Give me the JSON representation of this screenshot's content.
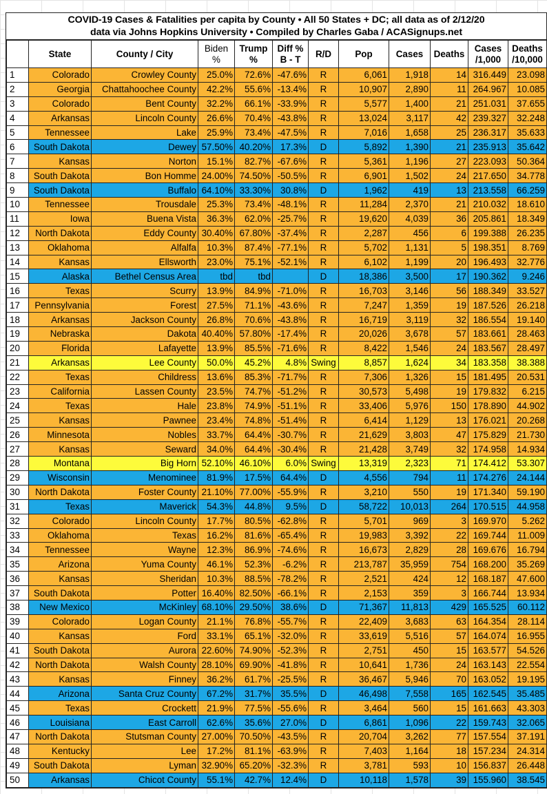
{
  "title": {
    "line1": "COVID-19 Cases & Fatalities per capita by County • All 50 States + DC; all data as of 2/12/20",
    "line2": "data via Johns Hopkins University • Compiled by Charles Gaba / ACASignups.net"
  },
  "colors": {
    "R": "#fbb535",
    "D": "#1da7e5",
    "Swing": "#fdfb3b"
  },
  "headers": [
    {
      "l1": "",
      "l2": ""
    },
    {
      "l1": "State",
      "l2": ""
    },
    {
      "l1": "County / City",
      "l2": ""
    },
    {
      "l1": "Biden",
      "l2": "%"
    },
    {
      "l1": "Trump",
      "l2": "%"
    },
    {
      "l1": "Diff %",
      "l2": "B - T"
    },
    {
      "l1": "R/D",
      "l2": ""
    },
    {
      "l1": "Pop",
      "l2": ""
    },
    {
      "l1": "Cases",
      "l2": ""
    },
    {
      "l1": "Deaths",
      "l2": ""
    },
    {
      "l1": "Cases",
      "l2": "/1,000"
    },
    {
      "l1": "Deaths",
      "l2": "/10,000"
    }
  ],
  "rows": [
    [
      "1",
      "Colorado",
      "Crowley County",
      "25.0%",
      "72.6%",
      "-47.6%",
      "R",
      "6,061",
      "1,918",
      "14",
      "316.449",
      "23.098"
    ],
    [
      "2",
      "Georgia",
      "Chattahoochee County",
      "42.2%",
      "55.6%",
      "-13.4%",
      "R",
      "10,907",
      "2,890",
      "11",
      "264.967",
      "10.085"
    ],
    [
      "3",
      "Colorado",
      "Bent County",
      "32.2%",
      "66.1%",
      "-33.9%",
      "R",
      "5,577",
      "1,400",
      "21",
      "251.031",
      "37.655"
    ],
    [
      "4",
      "Arkansas",
      "Lincoln County",
      "26.6%",
      "70.4%",
      "-43.8%",
      "R",
      "13,024",
      "3,117",
      "42",
      "239.327",
      "32.248"
    ],
    [
      "5",
      "Tennessee",
      "Lake",
      "25.9%",
      "73.4%",
      "-47.5%",
      "R",
      "7,016",
      "1,658",
      "25",
      "236.317",
      "35.633"
    ],
    [
      "6",
      "South Dakota",
      "Dewey",
      "57.50%",
      "40.20%",
      "17.3%",
      "D",
      "5,892",
      "1,390",
      "21",
      "235.913",
      "35.642"
    ],
    [
      "7",
      "Kansas",
      "Norton",
      "15.1%",
      "82.7%",
      "-67.6%",
      "R",
      "5,361",
      "1,196",
      "27",
      "223.093",
      "50.364"
    ],
    [
      "8",
      "South Dakota",
      "Bon Homme",
      "24.00%",
      "74.50%",
      "-50.5%",
      "R",
      "6,901",
      "1,502",
      "24",
      "217.650",
      "34.778"
    ],
    [
      "9",
      "South Dakota",
      "Buffalo",
      "64.10%",
      "33.30%",
      "30.8%",
      "D",
      "1,962",
      "419",
      "13",
      "213.558",
      "66.259"
    ],
    [
      "10",
      "Tennessee",
      "Trousdale",
      "25.3%",
      "73.4%",
      "-48.1%",
      "R",
      "11,284",
      "2,370",
      "21",
      "210.032",
      "18.610"
    ],
    [
      "11",
      "Iowa",
      "Buena Vista",
      "36.3%",
      "62.0%",
      "-25.7%",
      "R",
      "19,620",
      "4,039",
      "36",
      "205.861",
      "18.349"
    ],
    [
      "12",
      "North Dakota",
      "Eddy County",
      "30.40%",
      "67.80%",
      "-37.4%",
      "R",
      "2,287",
      "456",
      "6",
      "199.388",
      "26.235"
    ],
    [
      "13",
      "Oklahoma",
      "Alfalfa",
      "10.3%",
      "87.4%",
      "-77.1%",
      "R",
      "5,702",
      "1,131",
      "5",
      "198.351",
      "8.769"
    ],
    [
      "14",
      "Kansas",
      "Ellsworth",
      "23.0%",
      "75.1%",
      "-52.1%",
      "R",
      "6,102",
      "1,199",
      "20",
      "196.493",
      "32.776"
    ],
    [
      "15",
      "Alaska",
      "Bethel Census Area",
      "tbd",
      "tbd",
      "",
      "D",
      "18,386",
      "3,500",
      "17",
      "190.362",
      "9.246"
    ],
    [
      "16",
      "Texas",
      "Scurry",
      "13.9%",
      "84.9%",
      "-71.0%",
      "R",
      "16,703",
      "3,146",
      "56",
      "188.349",
      "33.527"
    ],
    [
      "17",
      "Pennsylvania",
      "Forest",
      "27.5%",
      "71.1%",
      "-43.6%",
      "R",
      "7,247",
      "1,359",
      "19",
      "187.526",
      "26.218"
    ],
    [
      "18",
      "Arkansas",
      "Jackson County",
      "26.8%",
      "70.6%",
      "-43.8%",
      "R",
      "16,719",
      "3,119",
      "32",
      "186.554",
      "19.140"
    ],
    [
      "19",
      "Nebraska",
      "Dakota",
      "40.40%",
      "57.80%",
      "-17.4%",
      "R",
      "20,026",
      "3,678",
      "57",
      "183.661",
      "28.463"
    ],
    [
      "20",
      "Florida",
      "Lafayette",
      "13.9%",
      "85.5%",
      "-71.6%",
      "R",
      "8,422",
      "1,546",
      "24",
      "183.567",
      "28.497"
    ],
    [
      "21",
      "Arkansas",
      "Lee County",
      "50.0%",
      "45.2%",
      "4.8%",
      "Swing",
      "8,857",
      "1,624",
      "34",
      "183.358",
      "38.388"
    ],
    [
      "22",
      "Texas",
      "Childress",
      "13.6%",
      "85.3%",
      "-71.7%",
      "R",
      "7,306",
      "1,326",
      "15",
      "181.495",
      "20.531"
    ],
    [
      "23",
      "California",
      "Lassen County",
      "23.5%",
      "74.7%",
      "-51.2%",
      "R",
      "30,573",
      "5,498",
      "19",
      "179.832",
      "6.215"
    ],
    [
      "24",
      "Texas",
      "Hale",
      "23.8%",
      "74.9%",
      "-51.1%",
      "R",
      "33,406",
      "5,976",
      "150",
      "178.890",
      "44.902"
    ],
    [
      "25",
      "Kansas",
      "Pawnee",
      "23.4%",
      "74.8%",
      "-51.4%",
      "R",
      "6,414",
      "1,129",
      "13",
      "176.021",
      "20.268"
    ],
    [
      "26",
      "Minnesota",
      "Nobles",
      "33.7%",
      "64.4%",
      "-30.7%",
      "R",
      "21,629",
      "3,803",
      "47",
      "175.829",
      "21.730"
    ],
    [
      "27",
      "Kansas",
      "Seward",
      "34.0%",
      "64.4%",
      "-30.4%",
      "R",
      "21,428",
      "3,749",
      "32",
      "174.958",
      "14.934"
    ],
    [
      "28",
      "Montana",
      "Big Horn",
      "52.10%",
      "46.10%",
      "6.0%",
      "Swing",
      "13,319",
      "2,323",
      "71",
      "174.412",
      "53.307"
    ],
    [
      "29",
      "Wisconsin",
      "Menominee",
      "81.9%",
      "17.5%",
      "64.4%",
      "D",
      "4,556",
      "794",
      "11",
      "174.276",
      "24.144"
    ],
    [
      "30",
      "North Dakota",
      "Foster County",
      "21.10%",
      "77.00%",
      "-55.9%",
      "R",
      "3,210",
      "550",
      "19",
      "171.340",
      "59.190"
    ],
    [
      "31",
      "Texas",
      "Maverick",
      "54.3%",
      "44.8%",
      "9.5%",
      "D",
      "58,722",
      "10,013",
      "264",
      "170.515",
      "44.958"
    ],
    [
      "32",
      "Colorado",
      "Lincoln County",
      "17.7%",
      "80.5%",
      "-62.8%",
      "R",
      "5,701",
      "969",
      "3",
      "169.970",
      "5.262"
    ],
    [
      "33",
      "Oklahoma",
      "Texas",
      "16.2%",
      "81.6%",
      "-65.4%",
      "R",
      "19,983",
      "3,392",
      "22",
      "169.744",
      "11.009"
    ],
    [
      "34",
      "Tennessee",
      "Wayne",
      "12.3%",
      "86.9%",
      "-74.6%",
      "R",
      "16,673",
      "2,829",
      "28",
      "169.676",
      "16.794"
    ],
    [
      "35",
      "Arizona",
      "Yuma County",
      "46.1%",
      "52.3%",
      "-6.2%",
      "R",
      "213,787",
      "35,959",
      "754",
      "168.200",
      "35.269"
    ],
    [
      "36",
      "Kansas",
      "Sheridan",
      "10.3%",
      "88.5%",
      "-78.2%",
      "R",
      "2,521",
      "424",
      "12",
      "168.187",
      "47.600"
    ],
    [
      "37",
      "South Dakota",
      "Potter",
      "16.40%",
      "82.50%",
      "-66.1%",
      "R",
      "2,153",
      "359",
      "3",
      "166.744",
      "13.934"
    ],
    [
      "38",
      "New Mexico",
      "McKinley",
      "68.10%",
      "29.50%",
      "38.6%",
      "D",
      "71,367",
      "11,813",
      "429",
      "165.525",
      "60.112"
    ],
    [
      "39",
      "Colorado",
      "Logan County",
      "21.1%",
      "76.8%",
      "-55.7%",
      "R",
      "22,409",
      "3,683",
      "63",
      "164.354",
      "28.114"
    ],
    [
      "40",
      "Kansas",
      "Ford",
      "33.1%",
      "65.1%",
      "-32.0%",
      "R",
      "33,619",
      "5,516",
      "57",
      "164.074",
      "16.955"
    ],
    [
      "41",
      "South Dakota",
      "Aurora",
      "22.60%",
      "74.90%",
      "-52.3%",
      "R",
      "2,751",
      "450",
      "15",
      "163.577",
      "54.526"
    ],
    [
      "42",
      "North Dakota",
      "Walsh County",
      "28.10%",
      "69.90%",
      "-41.8%",
      "R",
      "10,641",
      "1,736",
      "24",
      "163.143",
      "22.554"
    ],
    [
      "43",
      "Kansas",
      "Finney",
      "36.2%",
      "61.7%",
      "-25.5%",
      "R",
      "36,467",
      "5,946",
      "70",
      "163.052",
      "19.195"
    ],
    [
      "44",
      "Arizona",
      "Santa Cruz County",
      "67.2%",
      "31.7%",
      "35.5%",
      "D",
      "46,498",
      "7,558",
      "165",
      "162.545",
      "35.485"
    ],
    [
      "45",
      "Texas",
      "Crockett",
      "21.9%",
      "77.5%",
      "-55.6%",
      "R",
      "3,464",
      "560",
      "15",
      "161.663",
      "43.303"
    ],
    [
      "46",
      "Louisiana",
      "East Carroll",
      "62.6%",
      "35.6%",
      "27.0%",
      "D",
      "6,861",
      "1,096",
      "22",
      "159.743",
      "32.065"
    ],
    [
      "47",
      "North Dakota",
      "Stutsman County",
      "27.00%",
      "70.50%",
      "-43.5%",
      "R",
      "20,704",
      "3,262",
      "77",
      "157.554",
      "37.191"
    ],
    [
      "48",
      "Kentucky",
      "Lee",
      "17.2%",
      "81.1%",
      "-63.9%",
      "R",
      "7,403",
      "1,164",
      "18",
      "157.234",
      "24.314"
    ],
    [
      "49",
      "South Dakota",
      "Lyman",
      "32.90%",
      "65.20%",
      "-32.3%",
      "R",
      "3,781",
      "593",
      "10",
      "156.837",
      "26.448"
    ],
    [
      "50",
      "Arkansas",
      "Chicot County",
      "55.1%",
      "42.7%",
      "12.4%",
      "D",
      "10,118",
      "1,578",
      "39",
      "155.960",
      "38.545"
    ]
  ]
}
